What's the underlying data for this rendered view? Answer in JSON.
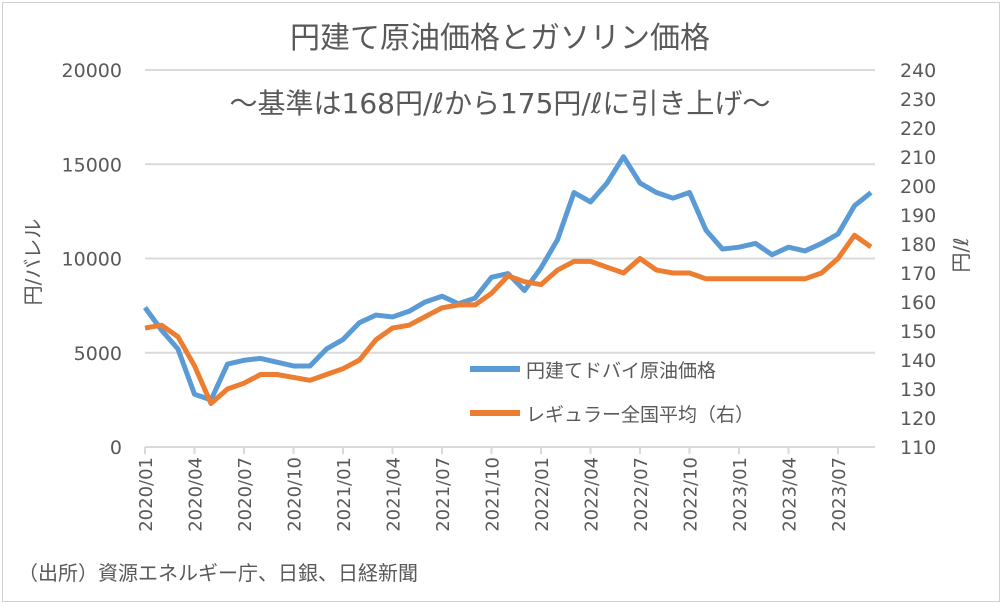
{
  "chart_data": {
    "type": "line",
    "title": "円建て原油価格とガソリン価格",
    "subtitle": "～基準は168円/ℓから175円/ℓに引き上げ～",
    "ylabel": "円/バレル",
    "y2label": "円/ℓ",
    "ylim": [
      0,
      20000
    ],
    "y2lim": [
      110,
      240
    ],
    "yticks": [
      "0",
      "5000",
      "10000",
      "15000",
      "20000"
    ],
    "y2ticks": [
      "110",
      "120",
      "130",
      "140",
      "150",
      "160",
      "170",
      "180",
      "190",
      "200",
      "210",
      "220",
      "230",
      "240"
    ],
    "xticks": [
      "2020/01",
      "2020/04",
      "2020/07",
      "2020/10",
      "2021/01",
      "2021/04",
      "2021/07",
      "2021/10",
      "2022/01",
      "2022/04",
      "2022/07",
      "2022/10",
      "2023/01",
      "2023/04",
      "2023/07"
    ],
    "grid": true,
    "legend_position": "bottom-right",
    "source": "（出所）資源エネルギー庁、日銀、日経新聞",
    "x": [
      "2020/01",
      "2020/02",
      "2020/03",
      "2020/04",
      "2020/05",
      "2020/06",
      "2020/07",
      "2020/08",
      "2020/09",
      "2020/10",
      "2020/11",
      "2020/12",
      "2021/01",
      "2021/02",
      "2021/03",
      "2021/04",
      "2021/05",
      "2021/06",
      "2021/07",
      "2021/08",
      "2021/09",
      "2021/10",
      "2021/11",
      "2021/12",
      "2022/01",
      "2022/02",
      "2022/03",
      "2022/04",
      "2022/05",
      "2022/06",
      "2022/07",
      "2022/08",
      "2022/09",
      "2022/10",
      "2022/11",
      "2022/12",
      "2023/01",
      "2023/02",
      "2023/03",
      "2023/04",
      "2023/05",
      "2023/06",
      "2023/07",
      "2023/08",
      "2023/09"
    ],
    "series": [
      {
        "name": "円建てドバイ原油価格",
        "axis": "left",
        "color": "#5B9BD5",
        "values": [
          7400,
          6200,
          5200,
          2800,
          2500,
          4400,
          4600,
          4700,
          4500,
          4300,
          4300,
          5200,
          5700,
          6600,
          7000,
          6900,
          7200,
          7700,
          8000,
          7600,
          7900,
          9000,
          9200,
          8300,
          9500,
          11000,
          13500,
          13000,
          14000,
          15400,
          14000,
          13500,
          13200,
          13500,
          11500,
          10500,
          10600,
          10800,
          10200,
          10600,
          10400,
          10800,
          11300,
          12800,
          13500
        ]
      },
      {
        "name": "レギュラー全国平均（右）",
        "axis": "right",
        "color": "#ED7D31",
        "values": [
          151,
          152,
          148,
          138,
          125,
          130,
          132,
          135,
          135,
          134,
          133,
          135,
          137,
          140,
          147,
          151,
          152,
          155,
          158,
          159,
          159,
          163,
          169,
          167,
          166,
          171,
          174,
          174,
          172,
          170,
          175,
          171,
          170,
          170,
          168,
          168,
          168,
          168,
          168,
          168,
          168,
          170,
          175,
          183,
          179
        ]
      }
    ]
  }
}
